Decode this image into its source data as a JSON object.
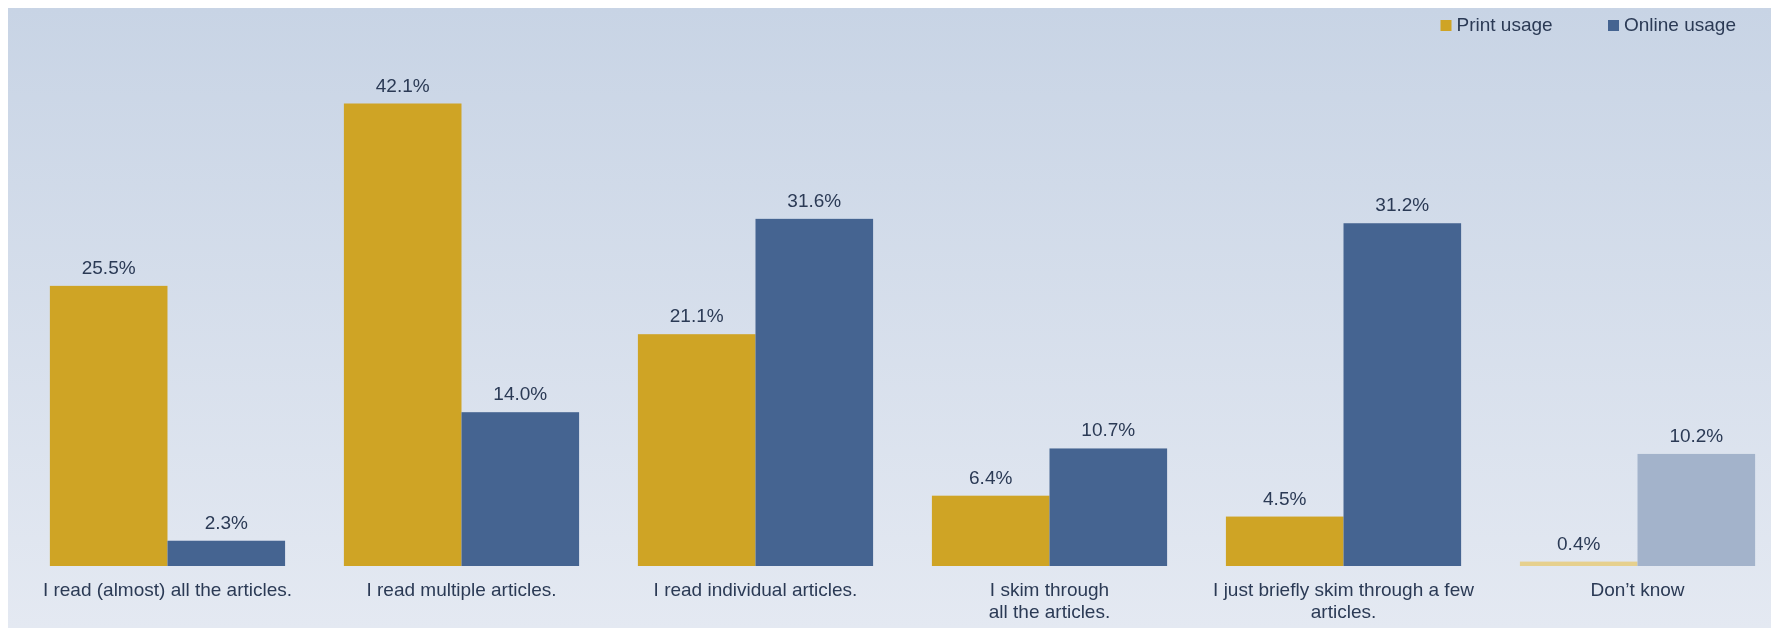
{
  "chart_data": {
    "type": "bar",
    "categories": [
      "I read (almost) all the articles.",
      "I read multiple articles.",
      "I read individual articles.",
      "I skim through\nall the articles.",
      "I just briefly skim through a few\narticles.",
      "Don’t know"
    ],
    "series": [
      {
        "name": "Print usage",
        "color": "#cfa425",
        "colors": [
          "#cfa425",
          "#cfa425",
          "#cfa425",
          "#cfa425",
          "#cfa425",
          "#e6d08e"
        ],
        "values": [
          25.5,
          42.1,
          21.1,
          6.4,
          4.5,
          0.4
        ],
        "value_labels": [
          "25.5%",
          "42.1%",
          "21.1%",
          "6.4%",
          "4.5%",
          "0.4%"
        ]
      },
      {
        "name": "Online usage",
        "color": "#456491",
        "colors": [
          "#456491",
          "#456491",
          "#456491",
          "#456491",
          "#456491",
          "#a3b3cb"
        ],
        "values": [
          2.3,
          14.0,
          31.6,
          10.7,
          31.2,
          10.2
        ],
        "value_labels": [
          "2.3%",
          "14.0%",
          "31.6%",
          "10.7%",
          "31.2%",
          "10.2%"
        ]
      }
    ],
    "legend": "top right"
  }
}
